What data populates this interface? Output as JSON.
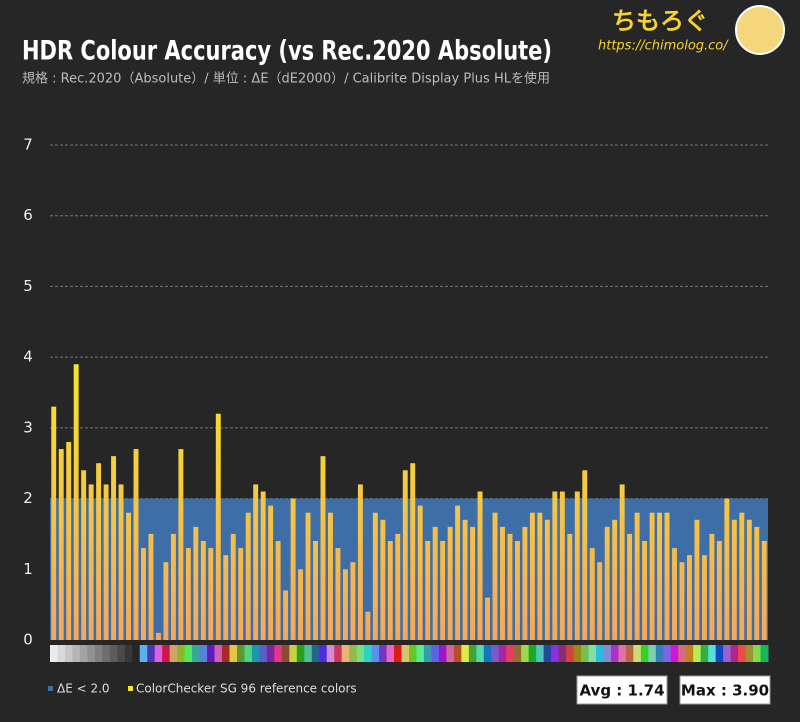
{
  "chart_data": {
    "type": "bar",
    "title": "HDR Colour Accuracy (vs Rec.2020 Absolute)",
    "subtitle": "規格 : Rec.2020（Absolute）/ 単位 : ΔE（dE2000）/ Calibrite Display Plus HLを使用",
    "brand": "ちもろぐ",
    "brand_url": "https://chimolog.co/",
    "threshold": 2,
    "threshold_label": "ΔE < 2.0",
    "threshold_color": "#3e6ea8",
    "series": [
      {
        "name": "ColorChecker SG 96 reference colors",
        "color": "#f6e62b",
        "color_bottom": "#f3a85c",
        "values": [
          3.3,
          2.7,
          2.8,
          3.9,
          2.4,
          2.2,
          2.5,
          2.2,
          2.6,
          2.2,
          1.8,
          2.7,
          1.3,
          1.5,
          0.1,
          1.1,
          1.5,
          2.7,
          1.3,
          1.6,
          1.4,
          1.3,
          3.2,
          1.2,
          1.5,
          1.3,
          1.8,
          2.2,
          2.1,
          1.9,
          1.4,
          0.7,
          2.0,
          1.0,
          1.8,
          1.4,
          2.6,
          1.8,
          1.3,
          1.0,
          1.1,
          2.2,
          0.4,
          1.8,
          1.7,
          1.4,
          1.5,
          2.4,
          2.5,
          1.9,
          1.4,
          1.6,
          1.4,
          1.6,
          1.9,
          1.7,
          1.6,
          2.1,
          0.6,
          1.8,
          1.6,
          1.5,
          1.4,
          1.6,
          1.8,
          1.8,
          1.7,
          2.1,
          2.1,
          1.5,
          2.1,
          2.4,
          1.3,
          1.1,
          1.6,
          1.7,
          2.2,
          1.5,
          1.8,
          1.4,
          1.8,
          1.8,
          1.8,
          1.3,
          1.1,
          1.2,
          1.7,
          1.2,
          1.5,
          1.4,
          2.0,
          1.7,
          1.8,
          1.7,
          1.6,
          1.4
        ]
      }
    ],
    "ylim": [
      0,
      7
    ],
    "yticks": [
      0,
      1,
      2,
      3,
      4,
      5,
      6,
      7
    ],
    "grid": true,
    "annotations": [
      "Avg : 1.74",
      "Max : 3.90"
    ]
  }
}
